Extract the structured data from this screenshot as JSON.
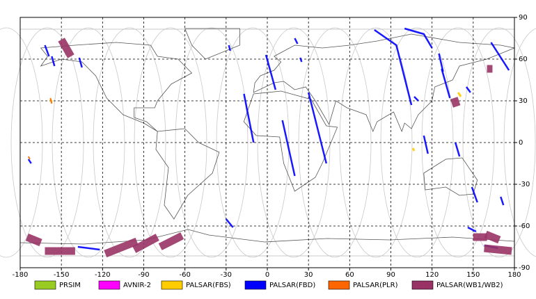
{
  "chart_data": {
    "type": "map",
    "xlim": [
      -180,
      180
    ],
    "ylim": [
      -90,
      90
    ],
    "xticks": [
      -180,
      -150,
      -120,
      -90,
      -60,
      -30,
      0,
      30,
      60,
      90,
      120,
      150,
      180
    ],
    "yticks": [
      -90,
      -60,
      -30,
      0,
      30,
      60,
      90
    ],
    "grid": true,
    "series": [
      {
        "name": "PRSIM",
        "color": "#99cc22",
        "width": 3,
        "segments": []
      },
      {
        "name": "AVNIR-2",
        "color": "#ff00ff",
        "width": 3,
        "segments": []
      },
      {
        "name": "PALSAR(FBS)",
        "color": "#ffcc00",
        "width": 3,
        "segments": [
          {
            "x": [
              -158,
              -157
            ],
            "y": [
              31,
              29
            ]
          },
          {
            "x": [
              139,
              141
            ],
            "y": [
              36,
              33
            ]
          },
          {
            "x": [
              106,
              107
            ],
            "y": [
              -4,
              -6
            ]
          }
        ]
      },
      {
        "name": "PALSAR(FBD)",
        "color": "#0000ff",
        "width": 2.5,
        "segments": [
          {
            "x": [
              -162,
              -159
            ],
            "y": [
              70,
              62
            ]
          },
          {
            "x": [
              -157,
              -155
            ],
            "y": [
              62,
              55
            ]
          },
          {
            "x": [
              -137,
              -135
            ],
            "y": [
              61,
              54
            ]
          },
          {
            "x": [
              -28,
              -27
            ],
            "y": [
              70,
              66
            ]
          },
          {
            "x": [
              -1,
              6
            ],
            "y": [
              63,
              38
            ]
          },
          {
            "x": [
              20,
              22
            ],
            "y": [
              75,
              71
            ]
          },
          {
            "x": [
              24,
              25
            ],
            "y": [
              61,
              58
            ]
          },
          {
            "x": [
              -17,
              -10
            ],
            "y": [
              35,
              0
            ]
          },
          {
            "x": [
              11,
              20
            ],
            "y": [
              16,
              -24
            ]
          },
          {
            "x": [
              30,
              43
            ],
            "y": [
              36,
              -15
            ]
          },
          {
            "x": [
              -174,
              -172
            ],
            "y": [
              -12,
              -15
            ]
          },
          {
            "x": [
              -30,
              -25
            ],
            "y": [
              -55,
              -61
            ]
          },
          {
            "x": [
              78,
              94,
              105
            ],
            "y": [
              81,
              70,
              27
            ]
          },
          {
            "x": [
              100,
              114,
              120
            ],
            "y": [
              82,
              78,
              68
            ]
          },
          {
            "x": [
              125,
              128
            ],
            "y": [
              64,
              51
            ]
          },
          {
            "x": [
              107,
              110
            ],
            "y": [
              33,
              30
            ]
          },
          {
            "x": [
              127,
              133
            ],
            "y": [
              53,
              32
            ]
          },
          {
            "x": [
              114,
              117
            ],
            "y": [
              5,
              -8
            ]
          },
          {
            "x": [
              137,
              140
            ],
            "y": [
              0,
              -10
            ]
          },
          {
            "x": [
              149,
              153
            ],
            "y": [
              -32,
              -43
            ]
          },
          {
            "x": [
              163,
              176
            ],
            "y": [
              72,
              52
            ]
          },
          {
            "x": [
              170,
              172
            ],
            "y": [
              -39,
              -45
            ]
          },
          {
            "x": [
              -138,
              -122
            ],
            "y": [
              -75,
              -77
            ]
          },
          {
            "x": [
              158,
              168
            ],
            "y": [
              -74,
              -76
            ]
          },
          {
            "x": [
              146,
              152
            ],
            "y": [
              -61,
              -64
            ]
          },
          {
            "x": [
              145,
              148
            ],
            "y": [
              40,
              36
            ]
          }
        ]
      },
      {
        "name": "PALSAR(PLR)",
        "color": "#ff6600",
        "width": 2,
        "segments": [
          {
            "x": [
              -158,
              -157
            ],
            "y": [
              32,
              28
            ]
          },
          {
            "x": [
              -174,
              -173
            ],
            "y": [
              -10,
              -12
            ]
          }
        ]
      },
      {
        "name": "PALSAR(WB1/WB2)",
        "color": "#993366",
        "width": 11,
        "segments": [
          {
            "x": [
              -150,
              -143
            ],
            "y": [
              74,
              62
            ]
          },
          {
            "x": [
              -175,
              -165
            ],
            "y": [
              -68,
              -72
            ]
          },
          {
            "x": [
              -162,
              -140
            ],
            "y": [
              -78,
              -78
            ]
          },
          {
            "x": [
              -118,
              -95
            ],
            "y": [
              -80,
              -71
            ]
          },
          {
            "x": [
              -97,
              -80
            ],
            "y": [
              -77,
              -68
            ]
          },
          {
            "x": [
              -78,
              -62
            ],
            "y": [
              -75,
              -67
            ]
          },
          {
            "x": [
              150,
              160
            ],
            "y": [
              -68,
              -68
            ]
          },
          {
            "x": [
              159,
              169
            ],
            "y": [
              -66,
              -70
            ]
          },
          {
            "x": [
              158,
              178
            ],
            "y": [
              -76,
              -78
            ]
          },
          {
            "x": [
              136,
              138
            ],
            "y": [
              32,
              26
            ]
          },
          {
            "x": [
              160,
              164
            ],
            "y": [
              53,
              53
            ]
          }
        ]
      }
    ]
  }
}
